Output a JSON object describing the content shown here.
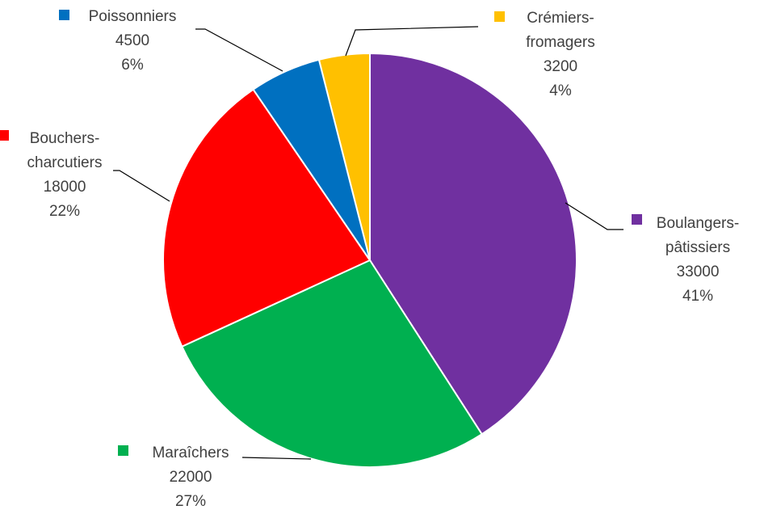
{
  "chart_data": {
    "type": "pie",
    "title": "",
    "slices": [
      {
        "label_lines": [
          "Crémiers-",
          "fromagers"
        ],
        "value": 3200,
        "value_label": "3200",
        "percent_label": "4%",
        "color": "#FFC000"
      },
      {
        "label_lines": [
          "Boulangers-",
          "pâtissiers"
        ],
        "value": 33000,
        "value_label": "33000",
        "percent_label": "41%",
        "color": "#7030A0"
      },
      {
        "label_lines": [
          "Maraîchers"
        ],
        "value": 22000,
        "value_label": "22000",
        "percent_label": "27%",
        "color": "#00B050"
      },
      {
        "label_lines": [
          "Bouchers-",
          "charcutiers"
        ],
        "value": 18000,
        "value_label": "18000",
        "percent_label": "22%",
        "color": "#FF0000"
      },
      {
        "label_lines": [
          "Poissonniers"
        ],
        "value": 4500,
        "value_label": "4500",
        "percent_label": "6%",
        "color": "#0070C0"
      }
    ]
  }
}
